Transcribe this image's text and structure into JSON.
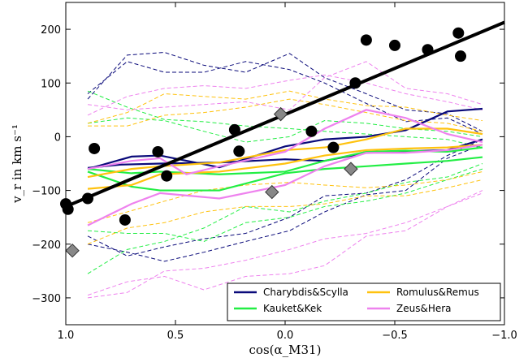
{
  "chart_data": {
    "type": "line",
    "xlabel": "cos(α_M31)",
    "ylabel": "v_r in km s⁻¹",
    "xlim": [
      1.0,
      -1.0
    ],
    "ylim": [
      -350,
      250
    ],
    "x_ticks": [
      "1.0",
      "0.5",
      "0.0",
      "−0.5",
      "−1.0"
    ],
    "x_tick_values": [
      1.0,
      0.5,
      0.0,
      -0.5,
      -1.0
    ],
    "y_ticks": [
      "200",
      "100",
      "0",
      "−100",
      "−200",
      "−300"
    ],
    "y_tick_values": [
      200,
      100,
      0,
      -100,
      -200,
      -300
    ],
    "grid": false,
    "legend_position": "bottom-right",
    "colors": {
      "charybdis_scylla": "#0a0a7a",
      "kauket_kek": "#22ee44",
      "romulus_remus": "#ffc20e",
      "zeus_hera": "#ee82ee",
      "black": "#000000",
      "grey_marker": "#888888"
    },
    "fit_line": {
      "x": [
        1.0,
        -1.0
      ],
      "y": [
        -130,
        213
      ]
    },
    "black_points": {
      "x": [
        1.0,
        0.99,
        0.9,
        0.87,
        0.73,
        0.58,
        0.54,
        0.23,
        0.21,
        -0.12,
        -0.22,
        -0.32,
        -0.37,
        -0.5,
        -0.65,
        -0.79,
        -0.8
      ],
      "y": [
        -125,
        -135,
        -115,
        -22,
        -155,
        -28,
        -73,
        13,
        -27,
        10,
        -20,
        100,
        180,
        170,
        162,
        193,
        150
      ]
    },
    "grey_diamonds": {
      "x": [
        0.97,
        0.02,
        0.06,
        -0.3
      ],
      "y": [
        -212,
        42,
        -103,
        -60
      ]
    },
    "series": [
      {
        "name": "Charybdis&Scylla",
        "color_key": "charybdis_scylla",
        "solid": [
          {
            "x": [
              0.9,
              0.7,
              0.57,
              0.3,
              0.0,
              -0.18,
              -0.37,
              -0.55,
              -0.74,
              -0.9
            ],
            "y": [
              -60,
              -37,
              -35,
              -57,
              -18,
              -5,
              0,
              12,
              47,
              52
            ]
          },
          {
            "x": [
              0.9,
              0.75,
              0.57,
              0.3,
              0.0,
              -0.18,
              -0.37,
              -0.55,
              -0.74,
              -0.9
            ],
            "y": [
              -58,
              -52,
              -50,
              -48,
              -42,
              -45,
              -30,
              -27,
              -25,
              -5
            ]
          }
        ],
        "dashed": [
          {
            "x": [
              0.9,
              0.72,
              0.55,
              0.37,
              0.18,
              -0.02,
              -0.18,
              -0.37,
              -0.55,
              -0.74,
              -0.9
            ],
            "y": [
              70,
              152,
              157,
              133,
              120,
              155,
              110,
              80,
              50,
              43,
              10
            ]
          },
          {
            "x": [
              0.9,
              0.72,
              0.55,
              0.37,
              0.18,
              -0.02,
              -0.18,
              -0.37,
              -0.55,
              -0.74,
              -0.9
            ],
            "y": [
              80,
              140,
              120,
              120,
              140,
              125,
              100,
              62,
              28,
              35,
              5
            ]
          },
          {
            "x": [
              0.9,
              0.72,
              0.55,
              0.37,
              0.18,
              -0.02,
              -0.18,
              -0.37,
              -0.55,
              -0.74,
              -0.9
            ],
            "y": [
              -185,
              -222,
              -205,
              -190,
              -180,
              -150,
              -110,
              -105,
              -80,
              -35,
              -5
            ]
          },
          {
            "x": [
              0.9,
              0.72,
              0.55,
              0.37,
              0.18,
              -0.02,
              -0.18,
              -0.37,
              -0.55,
              -0.74,
              -0.9
            ],
            "y": [
              -200,
              -215,
              -232,
              -215,
              -195,
              -175,
              -140,
              -108,
              -100,
              -40,
              -15
            ]
          }
        ]
      },
      {
        "name": "Kauket&Kek",
        "color_key": "kauket_kek",
        "solid": [
          {
            "x": [
              0.9,
              0.7,
              0.57,
              0.3,
              0.0,
              -0.18,
              -0.37,
              -0.55,
              -0.74,
              -0.9
            ],
            "y": [
              -60,
              -68,
              -65,
              -70,
              -65,
              -45,
              -28,
              -26,
              -28,
              -20
            ]
          },
          {
            "x": [
              0.9,
              0.7,
              0.57,
              0.3,
              0.0,
              -0.18,
              -0.37,
              -0.55,
              -0.74,
              -0.9
            ],
            "y": [
              -65,
              -93,
              -100,
              -100,
              -68,
              -60,
              -55,
              -50,
              -45,
              -38
            ]
          }
        ],
        "dashed": [
          {
            "x": [
              0.9,
              0.72,
              0.55,
              0.37,
              0.18,
              -0.02,
              -0.18,
              -0.37,
              -0.55,
              -0.74,
              -0.9
            ],
            "y": [
              85,
              55,
              32,
              28,
              20,
              15,
              10,
              5,
              0,
              -5,
              -20
            ]
          },
          {
            "x": [
              0.9,
              0.72,
              0.55,
              0.37,
              0.18,
              -0.02,
              -0.18,
              -0.37,
              -0.55,
              -0.74,
              -0.9
            ],
            "y": [
              25,
              35,
              30,
              10,
              -10,
              0,
              30,
              25,
              15,
              10,
              0
            ]
          },
          {
            "x": [
              0.9,
              0.72,
              0.55,
              0.37,
              0.18,
              -0.02,
              -0.18,
              -0.37,
              -0.55,
              -0.74,
              -0.9
            ],
            "y": [
              -175,
              -180,
              -180,
              -195,
              -160,
              -150,
              -130,
              -120,
              -105,
              -80,
              -60
            ]
          },
          {
            "x": [
              0.9,
              0.72,
              0.55,
              0.37,
              0.18,
              -0.02,
              -0.18,
              -0.37,
              -0.55,
              -0.74,
              -0.9
            ],
            "y": [
              -255,
              -210,
              -195,
              -170,
              -130,
              -140,
              -120,
              -105,
              -85,
              -75,
              -50
            ]
          }
        ]
      },
      {
        "name": "Romulus&Remus",
        "color_key": "romulus_remus",
        "solid": [
          {
            "x": [
              0.9,
              0.7,
              0.57,
              0.3,
              0.0,
              -0.18,
              -0.37,
              -0.55,
              -0.74,
              -0.9
            ],
            "y": [
              -75,
              -60,
              -55,
              -48,
              -25,
              -20,
              -5,
              15,
              15,
              5
            ]
          },
          {
            "x": [
              0.9,
              0.7,
              0.57,
              0.3,
              0.0,
              -0.18,
              -0.37,
              -0.55,
              -0.74,
              -0.9
            ],
            "y": [
              -97,
              -90,
              -70,
              -65,
              -50,
              -35,
              -25,
              -22,
              -20,
              -15
            ]
          }
        ],
        "dashed": [
          {
            "x": [
              0.9,
              0.72,
              0.55,
              0.37,
              0.18,
              -0.02,
              -0.18,
              -0.37,
              -0.55,
              -0.74,
              -0.9
            ],
            "y": [
              25,
              45,
              80,
              75,
              70,
              85,
              70,
              58,
              55,
              40,
              30
            ]
          },
          {
            "x": [
              0.9,
              0.72,
              0.55,
              0.37,
              0.18,
              -0.02,
              -0.18,
              -0.37,
              -0.55,
              -0.74,
              -0.9
            ],
            "y": [
              20,
              20,
              40,
              45,
              55,
              70,
              60,
              45,
              30,
              25,
              10
            ]
          },
          {
            "x": [
              0.9,
              0.72,
              0.55,
              0.37,
              0.18,
              -0.02,
              -0.18,
              -0.37,
              -0.55,
              -0.74,
              -0.9
            ],
            "y": [
              -160,
              -140,
              -120,
              -100,
              -90,
              -85,
              -90,
              -95,
              -90,
              -80,
              -65
            ]
          },
          {
            "x": [
              0.9,
              0.72,
              0.55,
              0.37,
              0.18,
              -0.02,
              -0.18,
              -0.37,
              -0.55,
              -0.74,
              -0.9
            ],
            "y": [
              -200,
              -170,
              -160,
              -140,
              -130,
              -130,
              -125,
              -110,
              -110,
              -95,
              -80
            ]
          }
        ]
      },
      {
        "name": "Zeus&Hera",
        "color_key": "zeus_hera",
        "solid": [
          {
            "x": [
              0.9,
              0.7,
              0.57,
              0.45,
              0.3,
              0.0,
              -0.18,
              -0.37,
              -0.55,
              -0.74,
              -0.9
            ],
            "y": [
              -60,
              -45,
              -40,
              -70,
              -55,
              -28,
              15,
              50,
              35,
              5,
              -10
            ]
          },
          {
            "x": [
              0.9,
              0.7,
              0.57,
              0.3,
              0.0,
              -0.18,
              -0.37,
              -0.55,
              -0.74,
              -0.9
            ],
            "y": [
              -165,
              -125,
              -105,
              -115,
              -90,
              -55,
              -30,
              -30,
              -25,
              -15
            ]
          }
        ],
        "dashed": [
          {
            "x": [
              0.9,
              0.72,
              0.55,
              0.37,
              0.18,
              -0.02,
              -0.18,
              -0.37,
              -0.55,
              -0.74,
              -0.9
            ],
            "y": [
              60,
              50,
              55,
              60,
              65,
              50,
              110,
              140,
              90,
              80,
              60
            ]
          },
          {
            "x": [
              0.9,
              0.72,
              0.55,
              0.37,
              0.18,
              -0.02,
              -0.18,
              -0.37,
              -0.55,
              -0.74,
              -0.9
            ],
            "y": [
              40,
              75,
              90,
              95,
              90,
              105,
              115,
              100,
              80,
              65,
              50
            ]
          },
          {
            "x": [
              0.9,
              0.72,
              0.55,
              0.37,
              0.18,
              -0.02,
              -0.18,
              -0.37,
              -0.55,
              -0.74,
              -0.9
            ],
            "y": [
              -295,
              -270,
              -260,
              -285,
              -260,
              -255,
              -240,
              -185,
              -175,
              -130,
              -105
            ]
          },
          {
            "x": [
              0.9,
              0.72,
              0.55,
              0.37,
              0.18,
              -0.02,
              -0.18,
              -0.37,
              -0.55,
              -0.74,
              -0.9
            ],
            "y": [
              -300,
              -290,
              -250,
              -245,
              -230,
              -210,
              -190,
              -180,
              -160,
              -130,
              -100
            ]
          }
        ]
      }
    ]
  }
}
